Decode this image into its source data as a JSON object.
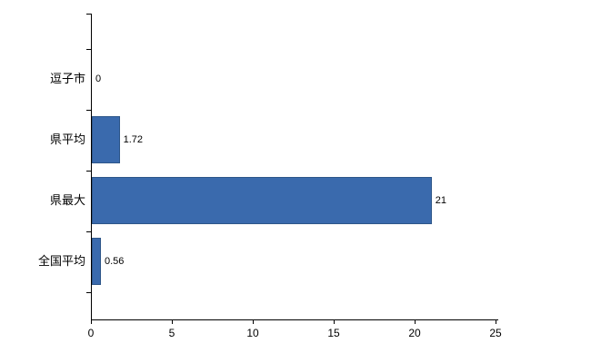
{
  "chart_data": {
    "type": "bar",
    "orientation": "horizontal",
    "title": "",
    "categories": [
      "逗子市",
      "県平均",
      "県最大",
      "全国平均"
    ],
    "values": [
      0,
      1.72,
      21,
      0.56
    ],
    "value_labels": [
      "0",
      "1.72",
      "21",
      "0.56"
    ],
    "x_ticks": [
      "0",
      "5",
      "10",
      "15",
      "20",
      "25"
    ],
    "xlim": [
      0,
      25
    ],
    "grid": false,
    "legend": "none",
    "bar_color": "#3a6aad",
    "bar_border_color": "#2d5689",
    "axis_color": "#000000",
    "background_color": "#ffffff"
  }
}
